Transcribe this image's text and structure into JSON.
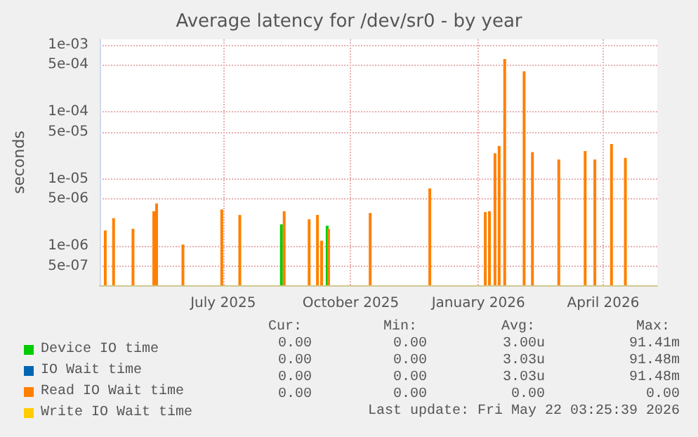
{
  "chart_data": {
    "type": "bar",
    "title": "Average latency for /dev/sr0 - by year",
    "ylabel": "seconds",
    "log": "y",
    "xlim": [
      "2025-04-03",
      "2026-05-10"
    ],
    "xticks": [
      {
        "value": "2025-07-01",
        "label": "July 2025"
      },
      {
        "value": "2025-10-01",
        "label": "October 2025"
      },
      {
        "value": "2026-01-01",
        "label": "January 2026"
      },
      {
        "value": "2026-04-01",
        "label": "April 2026"
      }
    ],
    "ylim": [
      2.6e-07,
      0.0012
    ],
    "yticks": [
      {
        "value": 5e-07,
        "label": "5e-07"
      },
      {
        "value": 1e-06,
        "label": "1e-06"
      },
      {
        "value": 5e-06,
        "label": "5e-06"
      },
      {
        "value": 1e-05,
        "label": "1e-05"
      },
      {
        "value": 5e-05,
        "label": "5e-05"
      },
      {
        "value": 0.0001,
        "label": "1e-04"
      },
      {
        "value": 0.0005,
        "label": "5e-04"
      },
      {
        "value": 0.001,
        "label": "1e-03"
      }
    ],
    "grid": true,
    "legend": "bottom left",
    "series": [
      {
        "name": "Device IO time",
        "color": "#00cc00",
        "x": [
          "2025-08-12",
          "2025-09-14"
        ],
        "values": [
          2.1e-06,
          2e-06
        ]
      },
      {
        "name": "IO Wait time",
        "color": "#0066b3"
      },
      {
        "name": "Read IO Wait time",
        "color": "#ff8000",
        "x": [
          "2025-04-07",
          "2025-04-13",
          "2025-04-27",
          "2025-05-12",
          "2025-05-14",
          "2025-06-02",
          "2025-06-30",
          "2025-07-13",
          "2025-08-14",
          "2025-09-01",
          "2025-09-07",
          "2025-09-10",
          "2025-09-15",
          "2025-10-15",
          "2025-11-27",
          "2026-01-06",
          "2026-01-09",
          "2026-01-13",
          "2026-01-16",
          "2026-01-20",
          "2026-02-03",
          "2026-02-09",
          "2026-02-28",
          "2026-03-19",
          "2026-03-26",
          "2026-04-07",
          "2026-04-17"
        ],
        "values": [
          1.7e-06,
          2.6e-06,
          1.8e-06,
          3.3e-06,
          4.3e-06,
          1.05e-06,
          3.5e-06,
          2.9e-06,
          3.3e-06,
          2.5e-06,
          2.9e-06,
          1.2e-06,
          1.8e-06,
          3.1e-06,
          7.2e-06,
          3.2e-06,
          3.3e-06,
          2.4e-05,
          3.1e-05,
          0.00061,
          0.0004,
          2.5e-05,
          1.95e-05,
          2.6e-05,
          1.95e-05,
          3.3e-05,
          2.05e-05
        ]
      },
      {
        "name": "Write IO Wait time",
        "color": "#ffcc00"
      }
    ],
    "annotations": [
      "Cur:",
      "Min:",
      "Avg:",
      "Max:",
      "0.00",
      "0.00",
      "3.00u",
      "91.41m",
      "0.00",
      "0.00",
      "3.03u",
      "91.48m",
      "0.00",
      "0.00",
      "3.03u",
      "91.48m",
      "0.00",
      "0.00",
      "0.00",
      "0.00",
      "Last update: Fri May 22 03:25:39 2026"
    ]
  }
}
